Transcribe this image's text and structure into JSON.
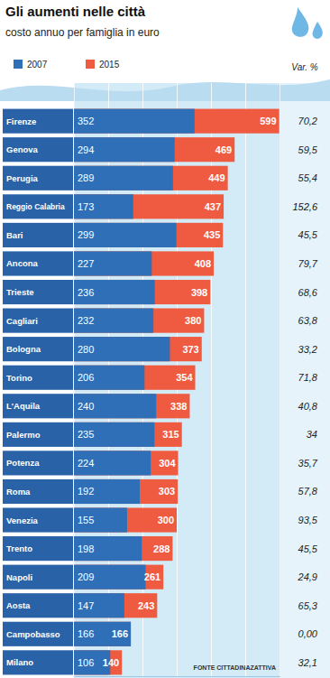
{
  "chart_data": {
    "type": "bar",
    "orientation": "horizontal",
    "title": "Gli aumenti nelle città",
    "subtitle": "costo annuo per famiglia in euro",
    "categories": [
      "Firenze",
      "Genova",
      "Perugia",
      "Reggio Calabria",
      "Bari",
      "Ancona",
      "Trieste",
      "Cagliari",
      "Bologna",
      "Torino",
      "L'Aquila",
      "Palermo",
      "Potenza",
      "Roma",
      "Venezia",
      "Trento",
      "Napoli",
      "Aosta",
      "Campobasso",
      "Milano"
    ],
    "series": [
      {
        "name": "2007",
        "color": "#2f6fb8",
        "values": [
          352,
          294,
          289,
          173,
          299,
          227,
          236,
          232,
          280,
          206,
          240,
          235,
          224,
          192,
          155,
          198,
          209,
          147,
          166,
          106
        ]
      },
      {
        "name": "2015",
        "color": "#ef5b40",
        "values": [
          599,
          469,
          449,
          437,
          435,
          408,
          398,
          380,
          373,
          354,
          338,
          315,
          304,
          303,
          300,
          288,
          261,
          243,
          166,
          140
        ]
      }
    ],
    "change": {
      "title": "Var. %",
      "values": [
        70.2,
        59.5,
        55.4,
        152.6,
        45.5,
        79.7,
        68.6,
        63.8,
        33.2,
        71.8,
        40.8,
        34,
        35.7,
        57.8,
        93.5,
        45.5,
        24.9,
        65.3,
        0.0,
        32.1
      ],
      "value_labels": [
        "70,2",
        "59,5",
        "55,4",
        "152,6",
        "45,5",
        "79,7",
        "68,6",
        "63,8",
        "33,2",
        "71,8",
        "40,8",
        "34",
        "35,7",
        "57,8",
        "93,5",
        "45,5",
        "24,9",
        "65,3",
        "0,00",
        "32,1"
      ]
    },
    "source": "FONTE CITTADINAZATTIVA",
    "xlim": [
      0,
      600
    ],
    "xticks": [
      0,
      100,
      200,
      300,
      400,
      500,
      600
    ],
    "grid": true,
    "tick_labels": false,
    "data_labels": true
  }
}
